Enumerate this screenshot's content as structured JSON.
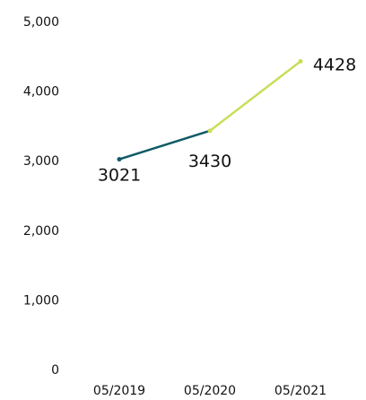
{
  "chart_data": {
    "type": "line",
    "categories": [
      "05/2019",
      "05/2020",
      "05/2021"
    ],
    "values": [
      3021,
      3430,
      4428
    ],
    "data_labels": [
      "3021",
      "3430",
      "4428"
    ],
    "ylim": [
      0,
      5000
    ],
    "yticks": [
      0,
      1000,
      2000,
      3000,
      4000,
      5000
    ],
    "ytick_labels": [
      "0",
      "1,000",
      "2,000",
      "3,000",
      "4,000",
      "5,000"
    ],
    "segment_colors": [
      "#0f5a66",
      "#c8de5a"
    ],
    "grid": false,
    "title": "",
    "xlabel": "",
    "ylabel": ""
  }
}
